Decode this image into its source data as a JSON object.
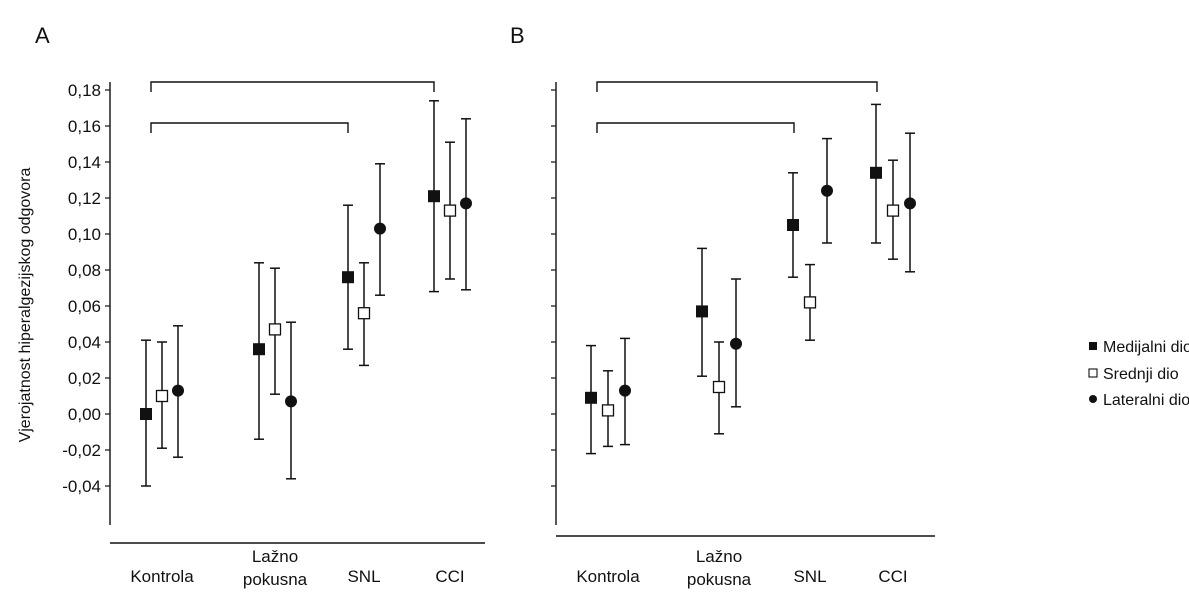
{
  "chart_data": {
    "type": "scatter",
    "ylabel": "Vjerojatnost hiperalgezijskog odgovora",
    "ylim": [
      -0.06,
      0.18
    ],
    "yticks": [
      "0,18",
      "0,16",
      "0,14",
      "0,12",
      "0,10",
      "0,08",
      "0,06",
      "0,04",
      "0,02",
      "0,00",
      "-0,02",
      "-0,04"
    ],
    "ytick_values": [
      0.18,
      0.16,
      0.14,
      0.12,
      0.1,
      0.08,
      0.06,
      0.04,
      0.02,
      0.0,
      -0.02,
      -0.04
    ],
    "categories": [
      [
        "Kontrola"
      ],
      [
        "Lažno",
        "pokusna"
      ],
      [
        "SNL"
      ],
      [
        "CCI"
      ]
    ],
    "legend": [
      {
        "name": "Medijalni dio",
        "marker": "filled-square"
      },
      {
        "name": "Srednji dio",
        "marker": "open-square"
      },
      {
        "name": "Lateralni dio",
        "marker": "filled-circle"
      }
    ],
    "panels": [
      {
        "label": "A",
        "series": [
          {
            "name": "Medijalni dio",
            "marker": "filled-square",
            "values": [
              0.0,
              0.036,
              0.076,
              0.121
            ],
            "lower": [
              -0.04,
              -0.014,
              0.036,
              0.068
            ],
            "upper": [
              0.041,
              0.084,
              0.116,
              0.174
            ]
          },
          {
            "name": "Srednji dio",
            "marker": "open-square",
            "values": [
              0.01,
              0.047,
              0.056,
              0.113
            ],
            "lower": [
              -0.019,
              0.011,
              0.027,
              0.075
            ],
            "upper": [
              0.04,
              0.081,
              0.084,
              0.151
            ]
          },
          {
            "name": "Lateralni dio",
            "marker": "filled-circle",
            "values": [
              0.013,
              0.007,
              0.103,
              0.117
            ],
            "lower": [
              -0.024,
              -0.036,
              0.066,
              0.069
            ],
            "upper": [
              0.049,
              0.051,
              0.139,
              0.164
            ]
          }
        ],
        "brackets": [
          {
            "from": 0,
            "to": 3
          },
          {
            "from": 0,
            "to": 2
          }
        ]
      },
      {
        "label": "B",
        "series": [
          {
            "name": "Medijalni dio",
            "marker": "filled-square",
            "values": [
              0.009,
              0.057,
              0.105,
              0.134
            ],
            "lower": [
              -0.022,
              0.021,
              0.076,
              0.095
            ],
            "upper": [
              0.038,
              0.092,
              0.134,
              0.172
            ]
          },
          {
            "name": "Srednji dio",
            "marker": "open-square",
            "values": [
              0.002,
              0.015,
              0.062,
              0.113
            ],
            "lower": [
              -0.018,
              -0.011,
              0.041,
              0.086
            ],
            "upper": [
              0.024,
              0.04,
              0.083,
              0.141
            ]
          },
          {
            "name": "Lateralni dio",
            "marker": "filled-circle",
            "values": [
              0.013,
              0.039,
              0.124,
              0.117
            ],
            "lower": [
              -0.017,
              0.004,
              0.095,
              0.079
            ],
            "upper": [
              0.042,
              0.075,
              0.153,
              0.156
            ]
          }
        ],
        "brackets": [
          {
            "from": 0,
            "to": 3
          },
          {
            "from": 0,
            "to": 2
          }
        ]
      }
    ]
  }
}
